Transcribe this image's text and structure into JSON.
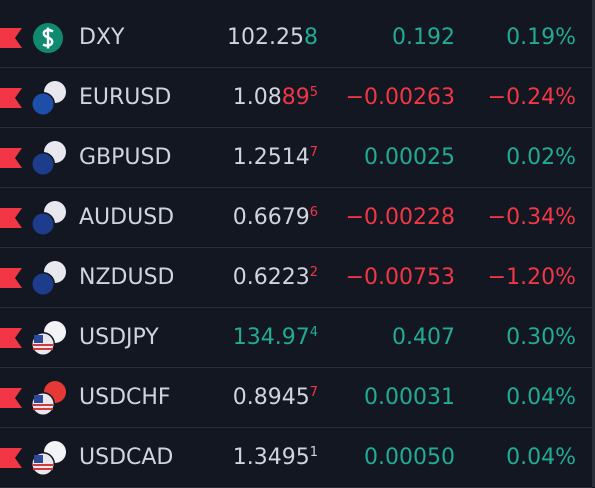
{
  "watchlist": {
    "rows": [
      {
        "symbol": "DXY",
        "price_main": "102.25",
        "price_tail": "8",
        "tail_color": "#22ab94",
        "change": "0.192",
        "change_pct": "0.19%",
        "change_color": "#22ab94"
      },
      {
        "symbol": "EURUSD",
        "price_main": "1.08",
        "price_tail": "89",
        "price_sup": "5",
        "tail_color": "#f23645",
        "change": "−0.00263",
        "change_pct": "−0.24%",
        "change_color": "#f23645"
      },
      {
        "symbol": "GBPUSD",
        "price_main": "1.2514",
        "price_sup": "7",
        "tail_color": "#f23645",
        "change": "0.00025",
        "change_pct": "0.02%",
        "change_color": "#22ab94"
      },
      {
        "symbol": "AUDUSD",
        "price_main": "0.6679",
        "price_sup": "6",
        "tail_color": "#f23645",
        "change": "−0.00228",
        "change_pct": "−0.34%",
        "change_color": "#f23645"
      },
      {
        "symbol": "NZDUSD",
        "price_main": "0.6223",
        "price_sup": "2",
        "tail_color": "#f23645",
        "change": "−0.00753",
        "change_pct": "−1.20%",
        "change_color": "#f23645"
      },
      {
        "symbol": "USDJPY",
        "price_main": "134.97",
        "main_color": "#22ab94",
        "price_sup": "4",
        "tail_color": "#22ab94",
        "change": "0.407",
        "change_pct": "0.30%",
        "change_color": "#22ab94"
      },
      {
        "symbol": "USDCHF",
        "price_main": "0.8945",
        "price_sup": "7",
        "tail_color": "#f23645",
        "change": "0.00031",
        "change_pct": "0.04%",
        "change_color": "#22ab94"
      },
      {
        "symbol": "USDCAD",
        "price_main": "1.3495",
        "price_sup": "1",
        "tail_color": "#d1d4dc",
        "change": "0.00050",
        "change_pct": "0.04%",
        "change_color": "#22ab94"
      }
    ]
  }
}
